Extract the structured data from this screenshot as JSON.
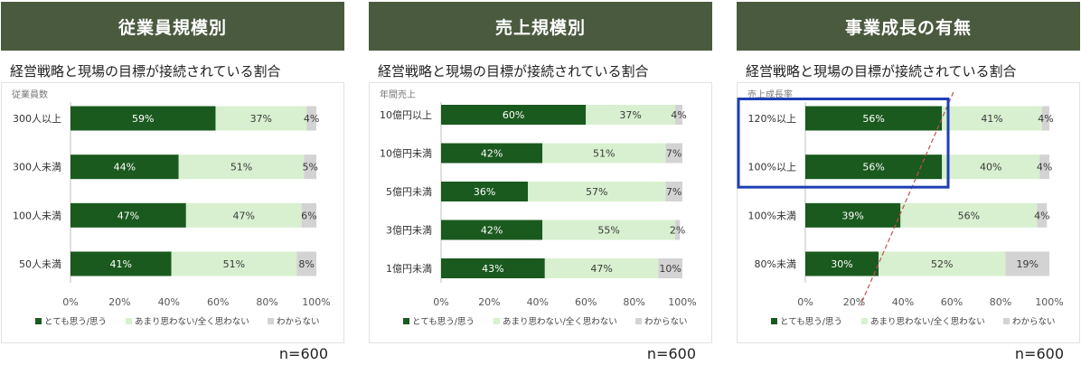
{
  "legend_labels": [
    "とても思う/思う",
    "あまり思わない/全く思わない",
    "わからない"
  ],
  "colors": {
    "agree": "#1a5a1e",
    "disagree": "#d8f0cf",
    "unknown": "#d3d3d3",
    "header": "#4a5a3f",
    "highlight": "#1e3fb5",
    "trend": "#c0504d"
  },
  "panels": [
    {
      "title": "従業員規模別",
      "subtitle": "経営戦略と現場の目標が接続されている割合",
      "n_label": "n=600",
      "chart_data": {
        "type": "bar",
        "stacked": true,
        "orientation": "horizontal",
        "axis_title": "従業員数",
        "categories": [
          "300人以上",
          "300人未満",
          "100人未満",
          "50人未満"
        ],
        "series": [
          {
            "name": "とても思う/思う",
            "values": [
              59,
              44,
              47,
              41
            ]
          },
          {
            "name": "あまり思わない/全く思わない",
            "values": [
              37,
              51,
              47,
              51
            ]
          },
          {
            "name": "わからない",
            "values": [
              4,
              5,
              6,
              8
            ]
          }
        ],
        "xticks": [
          "0%",
          "20%",
          "40%",
          "60%",
          "80%",
          "100%"
        ],
        "xlim": [
          0,
          100
        ]
      }
    },
    {
      "title": "売上規模別",
      "subtitle": "経営戦略と現場の目標が接続されている割合",
      "n_label": "n=600",
      "chart_data": {
        "type": "bar",
        "stacked": true,
        "orientation": "horizontal",
        "axis_title": "年間売上",
        "categories": [
          "10億円以上",
          "10億円未満",
          "5億円未満",
          "3億円未満",
          "1億円未満"
        ],
        "series": [
          {
            "name": "とても思う/思う",
            "values": [
              60,
              42,
              36,
              42,
              43
            ]
          },
          {
            "name": "あまり思わない/全く思わない",
            "values": [
              37,
              51,
              57,
              55,
              47
            ]
          },
          {
            "name": "わからない",
            "values": [
              4,
              7,
              7,
              2,
              10
            ]
          }
        ],
        "xticks": [
          "0%",
          "20%",
          "40%",
          "60%",
          "80%",
          "100%"
        ],
        "xlim": [
          0,
          100
        ]
      }
    },
    {
      "title": "事業成長の有無",
      "subtitle": "経営戦略と現場の目標が接続されている割合",
      "n_label": "n=600",
      "chart_data": {
        "type": "bar",
        "stacked": true,
        "orientation": "horizontal",
        "axis_title": "売上成長率",
        "categories": [
          "120%以上",
          "100%以上",
          "100%未満",
          "80%未満"
        ],
        "series": [
          {
            "name": "とても思う/思う",
            "values": [
              56,
              56,
              39,
              30
            ]
          },
          {
            "name": "あまり思わない/全く思わない",
            "values": [
              41,
              40,
              56,
              52
            ]
          },
          {
            "name": "わからない",
            "values": [
              4,
              4,
              4,
              19
            ]
          }
        ],
        "xticks": [
          "0%",
          "20%",
          "40%",
          "60%",
          "80%",
          "100%"
        ],
        "xlim": [
          0,
          100
        ],
        "highlight_categories": [
          "120%以上",
          "100%以上"
        ],
        "trend_line": true
      }
    }
  ]
}
